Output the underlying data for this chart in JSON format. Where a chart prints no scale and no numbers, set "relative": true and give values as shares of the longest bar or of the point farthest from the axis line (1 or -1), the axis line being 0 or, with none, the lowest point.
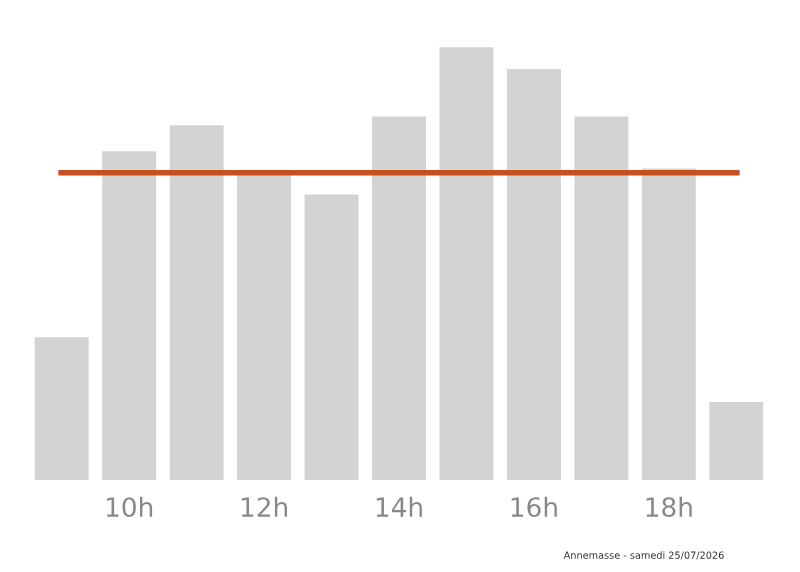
{
  "chart_data": {
    "type": "bar",
    "relative": true,
    "categories": [
      null,
      "10h",
      null,
      "12h",
      null,
      "14h",
      null,
      "16h",
      null,
      "18h",
      null
    ],
    "values": [
      0.33,
      0.76,
      0.82,
      0.71,
      0.66,
      0.84,
      1,
      0.95,
      0.84,
      0.72,
      0.18
    ],
    "color": "#d3d3d3",
    "ref_lines": [
      {
        "axis": "y",
        "value": 0.71,
        "color": "#c8501e"
      }
    ],
    "annotations": [
      "Annemasse - samedi 25/07/2026"
    ],
    "grid": false,
    "legend": false
  }
}
